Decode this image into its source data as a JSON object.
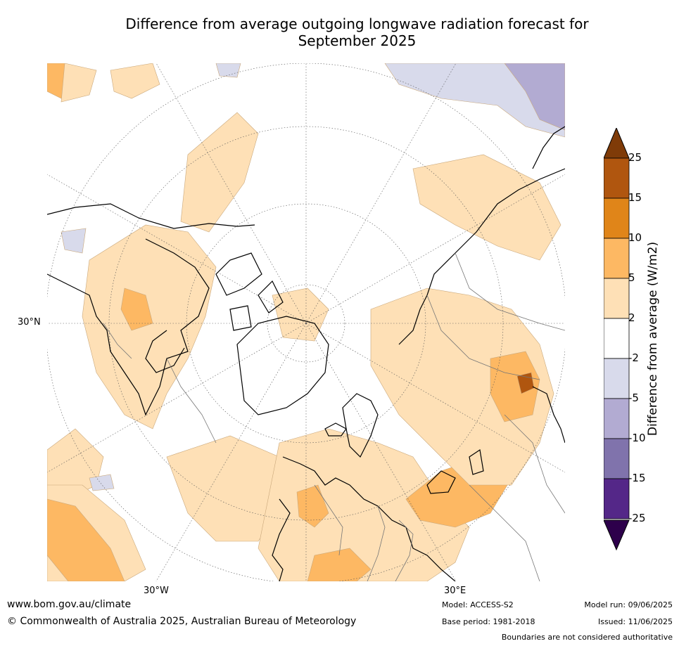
{
  "title_line1": "Difference from average outgoing longwave radiation forecast for",
  "title_line2": "September 2025",
  "map": {
    "projection": "north-polar stereographic",
    "labels": {
      "lat_30n": "30°N",
      "lon_30w": "30°W",
      "lon_30e": "30°E"
    }
  },
  "legend": {
    "title": "Difference from average (W/m2)",
    "ticks": [
      "25",
      "15",
      "10",
      "5",
      "2",
      "-2",
      "-5",
      "-10",
      "-15",
      "-25"
    ],
    "bins": [
      {
        "range": "15 to 25",
        "color": "#b0560f"
      },
      {
        "range": "10 to 15",
        "color": "#e08519"
      },
      {
        "range": "5 to 10",
        "color": "#fdb863"
      },
      {
        "range": "2 to 5",
        "color": "#fee0b6"
      },
      {
        "range": "-2 to 2",
        "color": "#ffffff"
      },
      {
        "range": "-5 to -2",
        "color": "#d8daeb"
      },
      {
        "range": "-10 to -5",
        "color": "#b2abd2"
      },
      {
        "range": "-15 to -10",
        "color": "#8073ac"
      },
      {
        "range": "-25 to -15",
        "color": "#542788"
      }
    ],
    "over_color": "#7f3b08",
    "under_color": "#2d004b"
  },
  "footer": {
    "website": "www.bom.gov.au/climate",
    "copyright": "© Commonwealth of Australia 2025, Australian Bureau of Meteorology",
    "model": "Model: ACCESS-S2",
    "base_period": "Base period: 1981-2018",
    "model_run": "Model run: 09/06/2025",
    "issued": "Issued: 11/06/2025",
    "boundaries_note": "Boundaries are not considered authoritative"
  }
}
